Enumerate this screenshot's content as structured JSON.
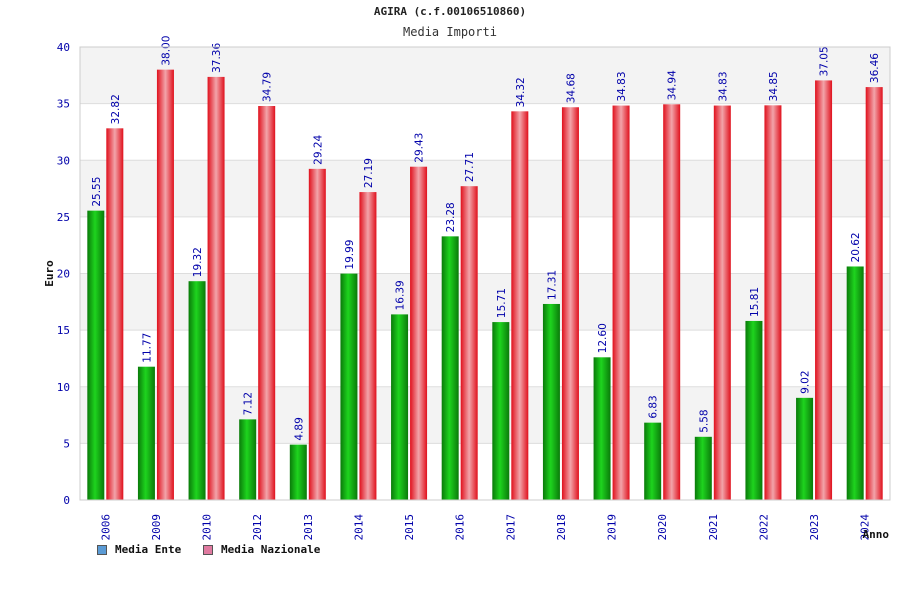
{
  "chart_data": {
    "type": "bar",
    "title": "AGIRA (c.f.00106510860)",
    "subtitle": "Media Importi",
    "ylabel": "Euro",
    "xlabel": "Anno",
    "ylim": [
      0,
      40
    ],
    "yticks": [
      0,
      5,
      10,
      15,
      20,
      25,
      30,
      35,
      40
    ],
    "grid": true,
    "legend_position": "bottom-left",
    "categories": [
      "2006",
      "2009",
      "2010",
      "2012",
      "2013",
      "2014",
      "2015",
      "2016",
      "2017",
      "2018",
      "2019",
      "2020",
      "2021",
      "2022",
      "2023",
      "2024"
    ],
    "series": [
      {
        "name": "Media Ente",
        "color": "#1f9e1f",
        "legend_color": "#5b9bd5",
        "values": [
          25.55,
          11.77,
          19.32,
          7.12,
          4.89,
          19.99,
          16.39,
          23.28,
          15.71,
          17.31,
          12.6,
          6.83,
          5.58,
          15.81,
          9.02,
          20.62
        ],
        "labels": [
          "25.55",
          "11.77",
          "19.32",
          "7.12",
          "4.89",
          "19.99",
          "16.39",
          "23.28",
          "15.71",
          "17.31",
          "12.60",
          "6.83",
          "5.58",
          "15.81",
          "9.02",
          "20.62"
        ]
      },
      {
        "name": "Media Nazionale",
        "color": "#e0202a",
        "legend_color": "#e07aa0",
        "values": [
          32.82,
          38.0,
          37.36,
          34.79,
          29.24,
          27.19,
          29.43,
          27.71,
          34.32,
          34.68,
          34.83,
          34.94,
          34.83,
          34.85,
          37.05,
          36.46
        ],
        "labels": [
          "32.82",
          "38.00",
          "37.36",
          "34.79",
          "29.24",
          "27.19",
          "29.43",
          "27.71",
          "34.32",
          "34.68",
          "34.83",
          "34.94",
          "34.83",
          "34.85",
          "37.05",
          "36.46"
        ]
      }
    ]
  }
}
